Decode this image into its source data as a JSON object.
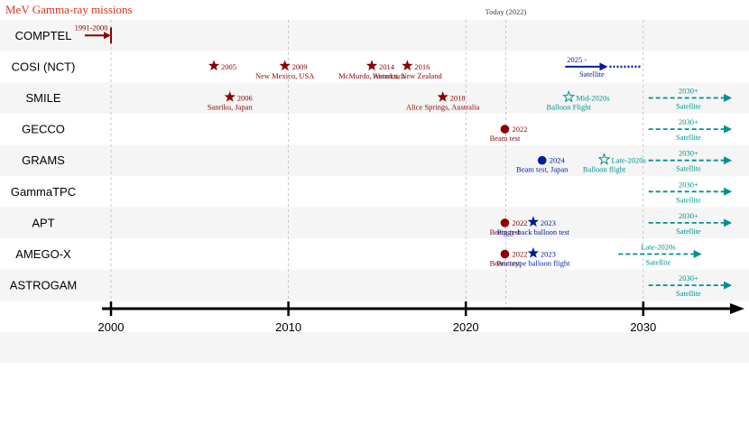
{
  "title": "MeV Gamma-ray missions",
  "today_label": "Today (2022)",
  "today_year": 2022.25,
  "colors": {
    "title": "#e0301e",
    "past": "#8b0000",
    "planned": "#001e96",
    "future": "#009090",
    "band": "#f5f5f5",
    "grid": "#bbbbbb",
    "axis": "#000000"
  },
  "axis": {
    "min": 1995,
    "max": 2035,
    "ticks": [
      {
        "year": 2000,
        "label": "2000"
      },
      {
        "year": 2010,
        "label": "2010"
      },
      {
        "year": 2020,
        "label": "2020"
      },
      {
        "year": 2030,
        "label": "2030"
      }
    ],
    "grid_years": [
      2000,
      2010,
      2020,
      2030
    ]
  },
  "rows": [
    {
      "name": "COMPTEL",
      "shaded": true
    },
    {
      "name": "COSI (NCT)",
      "shaded": false
    },
    {
      "name": "SMILE",
      "shaded": true
    },
    {
      "name": "GECCO",
      "shaded": false
    },
    {
      "name": "GRAMS",
      "shaded": true
    },
    {
      "name": "GammaTPC",
      "shaded": false
    },
    {
      "name": "APT",
      "shaded": true
    },
    {
      "name": "AMEGO-X",
      "shaded": false
    },
    {
      "name": "ASTROGAM",
      "shaded": true
    }
  ],
  "events": [
    {
      "row": 0,
      "kind": "range",
      "x0": 1991,
      "x1": 2000,
      "color": "past",
      "label": "1991-2000",
      "label_pos": "above"
    },
    {
      "row": 1,
      "kind": "star",
      "x": 2005.8,
      "color": "past",
      "year": "2005",
      "note": ""
    },
    {
      "row": 1,
      "kind": "star",
      "x": 2009.8,
      "color": "past",
      "year": "2009",
      "note": "New Mexico, USA"
    },
    {
      "row": 1,
      "kind": "star",
      "x": 2014.7,
      "color": "past",
      "year": "2014",
      "note": "McMurdo, Antarctica"
    },
    {
      "row": 1,
      "kind": "star",
      "x": 2016.7,
      "color": "past",
      "year": "2016",
      "note": "Wanaka, New Zealand"
    },
    {
      "row": 1,
      "kind": "plan",
      "x0": 2025.6,
      "x1": 2028.0,
      "x2": 2030.0,
      "color": "planned",
      "label_top": "2025 -",
      "label_bottom": "Satellite"
    },
    {
      "row": 2,
      "kind": "star",
      "x": 2006.7,
      "color": "past",
      "year": "2006",
      "note": "Sanriku, Japan"
    },
    {
      "row": 2,
      "kind": "star",
      "x": 2018.7,
      "color": "past",
      "year": "2018",
      "note": "Alice Springs, Australia"
    },
    {
      "row": 2,
      "kind": "star-open",
      "x": 2025.8,
      "color": "future",
      "year": "Mid-2020s",
      "note": "Balloon Flight"
    },
    {
      "row": 2,
      "kind": "future",
      "x0": 2030.3,
      "x1": 2035,
      "color": "future",
      "label_top": "2030+",
      "label_bottom": "Satellite"
    },
    {
      "row": 3,
      "kind": "dot",
      "x": 2022.2,
      "color": "past",
      "year": "2022",
      "note": "Beam test"
    },
    {
      "row": 3,
      "kind": "future",
      "x0": 2030.3,
      "x1": 2035,
      "color": "future",
      "label_top": "2030+",
      "label_bottom": "Satellite"
    },
    {
      "row": 4,
      "kind": "dot",
      "x": 2024.3,
      "color": "planned",
      "year": "2024",
      "note": "Beam test, Japan"
    },
    {
      "row": 4,
      "kind": "star-open",
      "x": 2027.8,
      "color": "future",
      "year": "Late-2020s",
      "note": "Balloon flight"
    },
    {
      "row": 4,
      "kind": "future",
      "x0": 2030.3,
      "x1": 2035,
      "color": "future",
      "label_top": "2030+",
      "label_bottom": "Satellite"
    },
    {
      "row": 5,
      "kind": "future",
      "x0": 2030.3,
      "x1": 2035,
      "color": "future",
      "label_top": "2030+",
      "label_bottom": "Satellite"
    },
    {
      "row": 6,
      "kind": "dot",
      "x": 2022.2,
      "color": "past",
      "year": "2022",
      "note": "Beam test"
    },
    {
      "row": 6,
      "kind": "star",
      "x": 2023.8,
      "color": "planned",
      "year": "2023",
      "note": "Piggy-back balloon test"
    },
    {
      "row": 6,
      "kind": "future",
      "x0": 2030.3,
      "x1": 2035,
      "color": "future",
      "label_top": "2030+",
      "label_bottom": "Satellite"
    },
    {
      "row": 7,
      "kind": "dot",
      "x": 2022.2,
      "color": "past",
      "year": "2022",
      "note": "Beam test"
    },
    {
      "row": 7,
      "kind": "star",
      "x": 2023.8,
      "color": "planned",
      "year": "2023",
      "note": "Prototype balloon flight"
    },
    {
      "row": 7,
      "kind": "future",
      "x0": 2028.6,
      "x1": 2033.3,
      "color": "future",
      "label_top": "Late-2020s",
      "label_bottom": "Satellite"
    },
    {
      "row": 8,
      "kind": "future",
      "x0": 2030.3,
      "x1": 2035,
      "color": "future",
      "label_top": "2030+",
      "label_bottom": "Satellite"
    }
  ]
}
